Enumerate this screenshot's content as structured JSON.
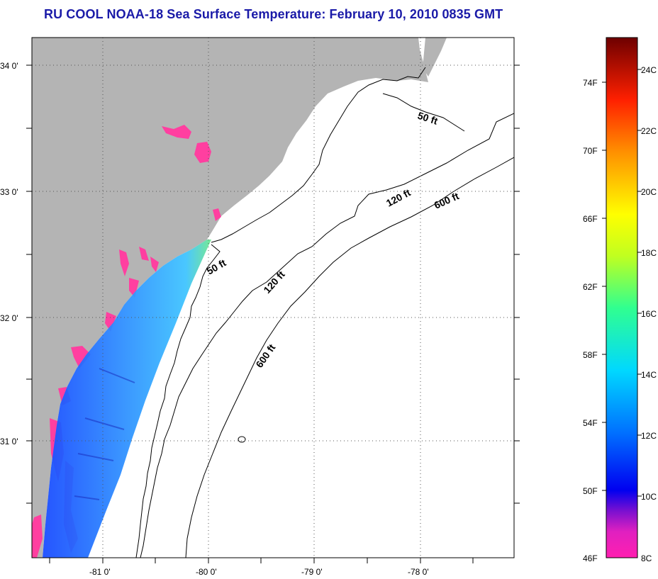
{
  "title": "RU COOL  NOAA-18  Sea Surface Temperature:  February 10, 2010 0835 GMT",
  "map": {
    "lat_labels": [
      "34 0'",
      "33 0'",
      "32 0'",
      "31 0'"
    ],
    "lon_labels": [
      "-81 0'",
      "-80 0'",
      "-79 0'",
      "-78 0'"
    ],
    "depth_labels": [
      "50 ft",
      "50 ft",
      "120 ft",
      "120 ft",
      "600 ft",
      "600 ft"
    ],
    "colors": {
      "land": "#b4b4b4",
      "ocean_no_data": "#ffffff",
      "cold_water": "#ff3fa0"
    }
  },
  "colorbar": {
    "fahrenheit_labels": [
      "74F",
      "70F",
      "66F",
      "62F",
      "58F",
      "54F",
      "50F",
      "46F"
    ],
    "celsius_labels": [
      "24C",
      "22C",
      "20C",
      "18C",
      "16C",
      "14C",
      "12C",
      "10C",
      "8C"
    ],
    "colors": [
      "#ff1fb0",
      "#c000c8",
      "#0000f0",
      "#0060ff",
      "#00c8ff",
      "#20ff80",
      "#ffff00",
      "#ff8000",
      "#ff0000",
      "#7a0000"
    ]
  }
}
